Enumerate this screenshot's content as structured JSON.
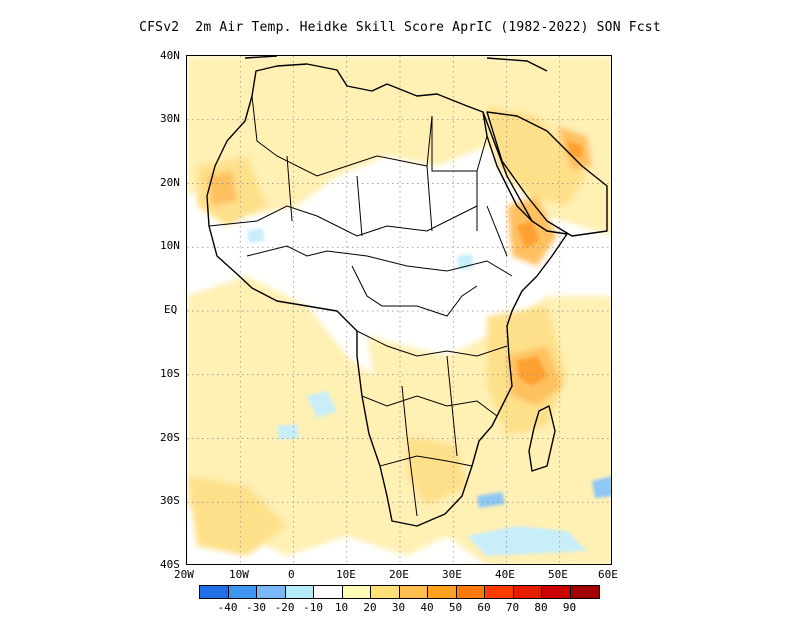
{
  "title": "CFSv2  2m Air Temp. Heidke Skill Score AprIC (1982-2022) SON Fcst",
  "map": {
    "region": "Africa",
    "lat_labels": [
      "40N",
      "30N",
      "20N",
      "10N",
      "EQ",
      "10S",
      "20S",
      "30S",
      "40S"
    ],
    "lon_labels": [
      "20W",
      "10W",
      "0",
      "10E",
      "20E",
      "30E",
      "40E",
      "50E",
      "60E"
    ],
    "gridlines": "dotted"
  },
  "colorbar": {
    "colors": [
      "#1e6fe6",
      "#3c96f0",
      "#78b9f5",
      "#b4ebfa",
      "#ffffff",
      "#fffab4",
      "#ffe178",
      "#ffbe50",
      "#ffa01e",
      "#ff780a",
      "#ff3c00",
      "#e61e00",
      "#c80000",
      "#a00000"
    ],
    "labels": [
      "-40",
      "-30",
      "-20",
      "-10",
      "10",
      "20",
      "30",
      "40",
      "50",
      "60",
      "70",
      "80",
      "90"
    ]
  }
}
